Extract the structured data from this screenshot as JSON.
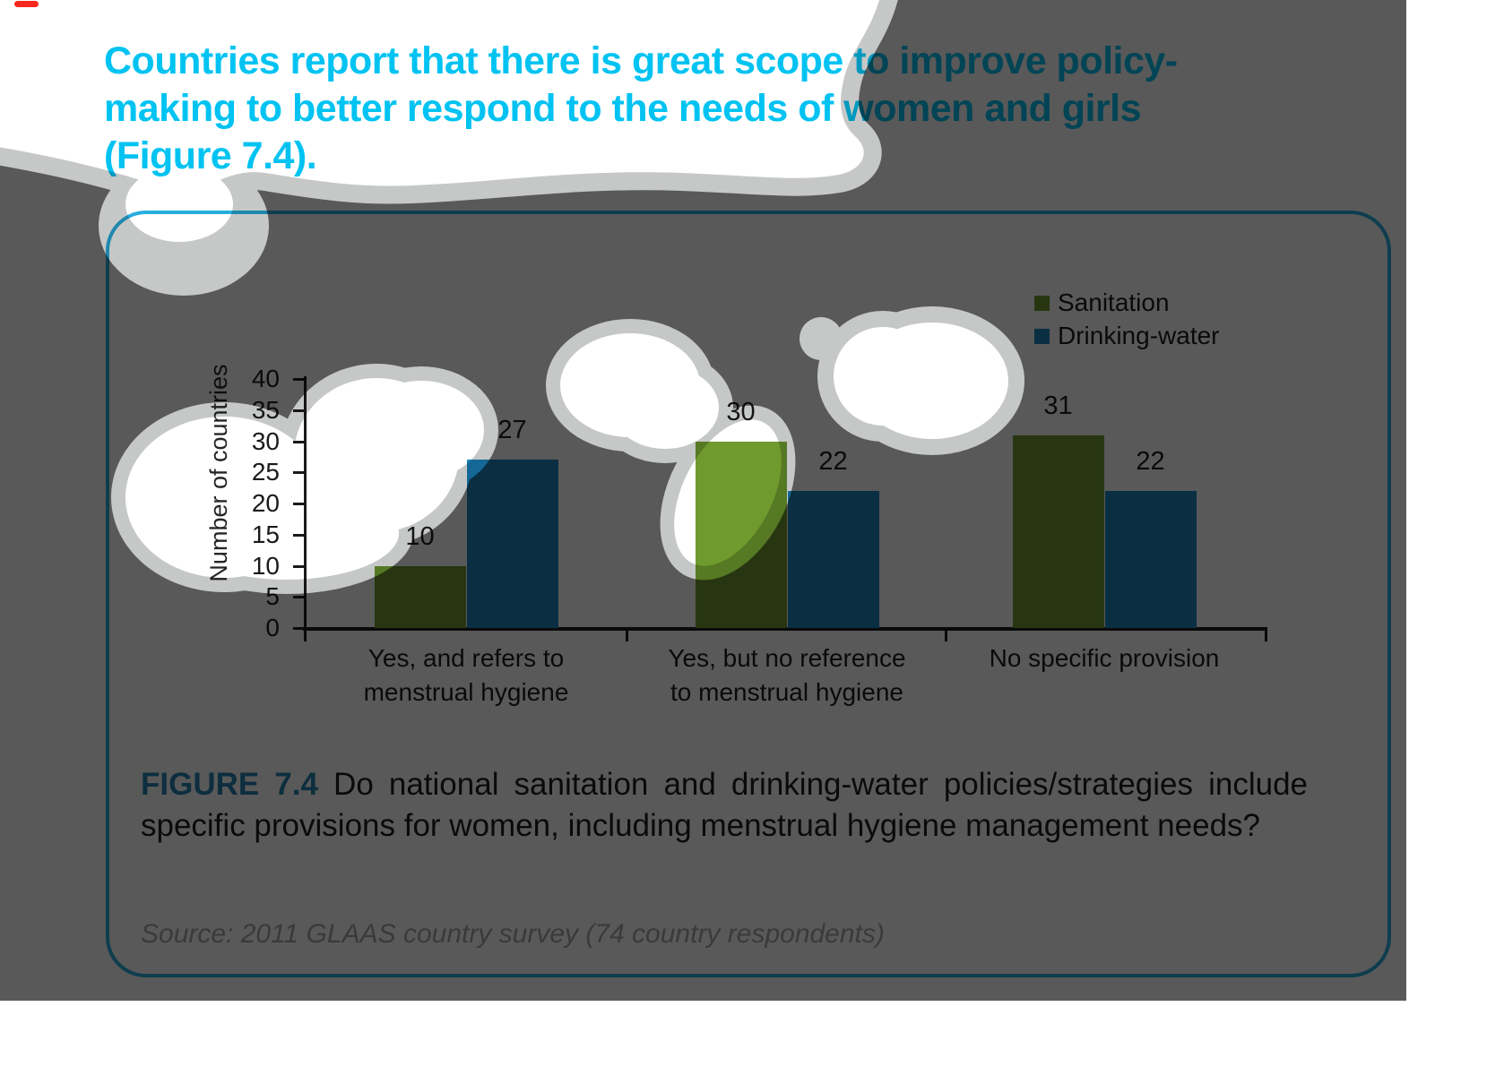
{
  "title": {
    "lines": [
      "Countries report that there is great scope to improve policy-",
      "making to better respond to the needs of women and girls",
      "(Figure 7.4)."
    ]
  },
  "legend": {
    "items": [
      {
        "label": "Sanitation",
        "color": "#6F9A2E"
      },
      {
        "label": "Drinking-water",
        "color": "#1A85BE"
      }
    ]
  },
  "chart_data": {
    "type": "bar",
    "categories": [
      "Yes, and refers to menstrual hygiene",
      "Yes, but no reference to menstrual hygiene",
      "No specific provision"
    ],
    "categories_lines": [
      [
        "Yes, and refers to",
        "menstrual hygiene"
      ],
      [
        "Yes, but no reference",
        "to menstrual hygiene"
      ],
      [
        "No specific provision"
      ]
    ],
    "series": [
      {
        "name": "Sanitation",
        "color": "#6F9A2E",
        "values": [
          10,
          30,
          31
        ]
      },
      {
        "name": "Drinking-water",
        "color": "#1A85BE",
        "values": [
          27,
          22,
          22
        ]
      }
    ],
    "ylabel": "Number of countries",
    "xlabel": "",
    "ylim": [
      0,
      40
    ],
    "yticks": [
      0,
      5,
      10,
      15,
      20,
      25,
      30,
      35,
      40
    ],
    "grid": false,
    "legend_position": "top-right",
    "value_labels_shown": true
  },
  "caption": {
    "label": "FIGURE 7.4",
    "text": " Do national sanitation and drinking-water policies/strategies include specific provisions for women, including menstrual hygiene management needs?"
  },
  "source": "Source: 2011 GLAAS country survey (74 country respondents)",
  "colors": {
    "title_cyan": "#00C3F2",
    "frame_border": "#28AEDE",
    "figure_label_teal": "#2382B0",
    "body_text": "#1A1A1A",
    "source_gray": "#A6A6A6",
    "red_mark": "#F5281E",
    "overlay_dim_gray": "#595959",
    "overlay_halo_gray": "#C6C8C8"
  }
}
